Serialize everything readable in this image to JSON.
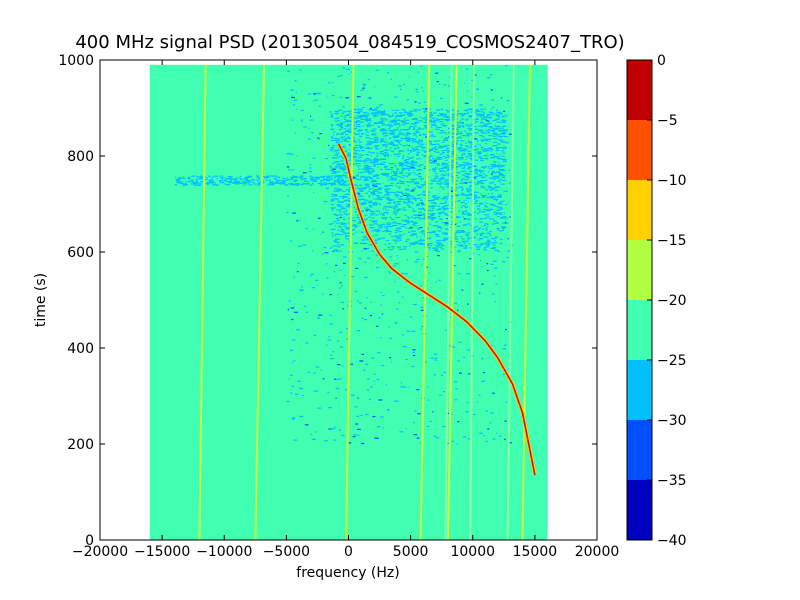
{
  "chart_data": {
    "type": "heatmap",
    "title": "400 MHz signal PSD (20130504_084519_COSMOS2407_TRO)",
    "xlabel": "frequency (Hz)",
    "ylabel": "time (s)",
    "xlim": [
      -20000,
      20000
    ],
    "ylim": [
      0,
      1000
    ],
    "xticks": [
      -20000,
      -15000,
      -10000,
      -5000,
      0,
      5000,
      10000,
      15000,
      20000
    ],
    "xtick_labels": [
      "−20000",
      "−15000",
      "−10000",
      "−5000",
      "0",
      "5000",
      "10000",
      "15000",
      "20000"
    ],
    "yticks": [
      0,
      200,
      400,
      600,
      800,
      1000
    ],
    "ytick_labels": [
      "0",
      "200",
      "400",
      "600",
      "800",
      "1000"
    ],
    "data_extent": {
      "x": [
        -16000,
        16000
      ],
      "y": [
        0,
        990
      ]
    },
    "background_level_range": [
      -25,
      -20
    ],
    "colorbar": {
      "range": [
        -40,
        0
      ],
      "ticks": [
        0,
        -5,
        -10,
        -15,
        -20,
        -25,
        -30,
        -35,
        -40
      ],
      "tick_labels": [
        "0",
        "−5",
        "−10",
        "−15",
        "−20",
        "−25",
        "−30",
        "−35",
        "−40"
      ],
      "levels": [
        {
          "range": [
            -40,
            -35
          ],
          "color": "#0000c0"
        },
        {
          "range": [
            -35,
            -30
          ],
          "color": "#0050ff"
        },
        {
          "range": [
            -30,
            -25
          ],
          "color": "#00c0ff"
        },
        {
          "range": [
            -25,
            -20
          ],
          "color": "#40ffb0"
        },
        {
          "range": [
            -20,
            -15
          ],
          "color": "#b0ff40"
        },
        {
          "range": [
            -15,
            -10
          ],
          "color": "#ffd000"
        },
        {
          "range": [
            -10,
            -5
          ],
          "color": "#ff5000"
        },
        {
          "range": [
            -5,
            0
          ],
          "color": "#c00000"
        }
      ]
    },
    "carrier_trace": {
      "level_range": [
        -10,
        0
      ],
      "color": "#d01010",
      "points": [
        {
          "f": 15000,
          "t": 135
        },
        {
          "f": 14500,
          "t": 200
        },
        {
          "f": 14000,
          "t": 265
        },
        {
          "f": 13200,
          "t": 325
        },
        {
          "f": 12000,
          "t": 380
        },
        {
          "f": 11000,
          "t": 415
        },
        {
          "f": 9500,
          "t": 455
        },
        {
          "f": 8000,
          "t": 485
        },
        {
          "f": 6500,
          "t": 510
        },
        {
          "f": 5000,
          "t": 535
        },
        {
          "f": 3500,
          "t": 565
        },
        {
          "f": 2500,
          "t": 595
        },
        {
          "f": 1500,
          "t": 640
        },
        {
          "f": 800,
          "t": 690
        },
        {
          "f": 200,
          "t": 750
        },
        {
          "f": -200,
          "t": 795
        },
        {
          "f": -800,
          "t": 825
        }
      ]
    },
    "interference_lines": {
      "level_range": [
        -20,
        -15
      ],
      "color": "#c8ff40",
      "lines": [
        {
          "f_start": -12000,
          "f_end": -11500
        },
        {
          "f_start": -7500,
          "f_end": -6800
        },
        {
          "f_start": -200,
          "f_end": 400
        },
        {
          "f_start": 5800,
          "f_end": 6500
        },
        {
          "f_start": 8000,
          "f_end": 8700
        },
        {
          "f_start": 14000,
          "f_end": 14600
        }
      ]
    },
    "weak_lines": {
      "level_range": [
        -25,
        -20
      ],
      "color": "#9cffa0",
      "lines": [
        {
          "f_start": 7800,
          "f_end": 8300
        },
        {
          "f_start": 9800,
          "f_end": 10100
        },
        {
          "f_start": 12800,
          "f_end": 13300
        }
      ]
    },
    "low_power_region": {
      "level_range": [
        -30,
        -25
      ],
      "f_range": [
        -1500,
        12500
      ],
      "t_range": [
        600,
        900
      ]
    }
  }
}
